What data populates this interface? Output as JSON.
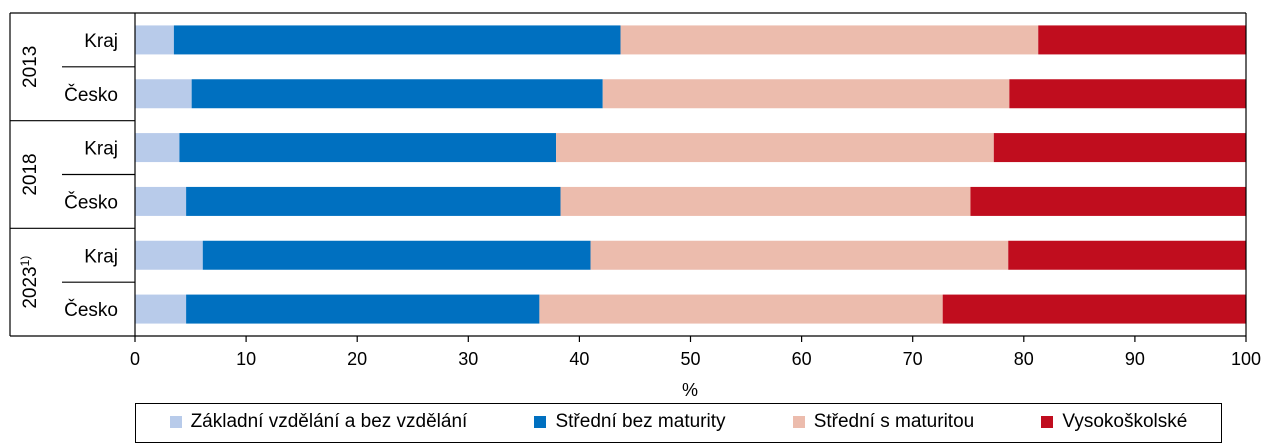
{
  "chart_data": {
    "type": "bar",
    "orientation": "horizontal",
    "stacked": true,
    "groups": [
      {
        "label": "2013",
        "superscript": "",
        "categories": [
          "Kraj",
          "Česko"
        ]
      },
      {
        "label": "2018",
        "superscript": "",
        "categories": [
          "Kraj",
          "Česko"
        ]
      },
      {
        "label": "2023",
        "superscript": "1)",
        "categories": [
          "Kraj",
          "Česko"
        ]
      }
    ],
    "series": [
      {
        "name": "Základní vzdělání a bez vzdělání",
        "color": "#b8cbea",
        "values": [
          3.5,
          5.1,
          4.0,
          4.6,
          6.1,
          4.6
        ]
      },
      {
        "name": "Střední bez maturity",
        "color": "#0070c0",
        "values": [
          40.2,
          37.0,
          33.9,
          33.7,
          34.9,
          31.8
        ]
      },
      {
        "name": "Střední s maturitou",
        "color": "#ecbcad",
        "values": [
          37.6,
          36.6,
          39.4,
          36.9,
          37.6,
          36.3
        ]
      },
      {
        "name": "Vysokoškolské",
        "color": "#c00d1e",
        "values": [
          18.7,
          21.3,
          22.7,
          24.8,
          21.4,
          27.3
        ]
      }
    ],
    "xlim": [
      0,
      100
    ],
    "xticks": [
      "0",
      "10",
      "20",
      "30",
      "40",
      "50",
      "60",
      "70",
      "80",
      "90",
      "100"
    ],
    "xlabel": "%",
    "legend_position": "bottom"
  }
}
